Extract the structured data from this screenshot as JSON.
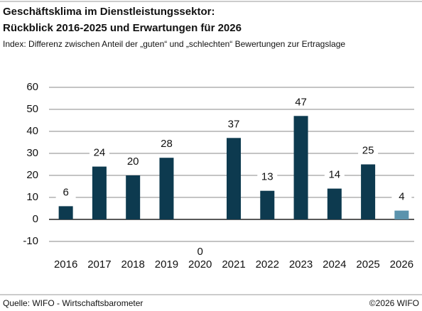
{
  "chart_data": {
    "type": "bar",
    "title": "Geschäftsklima im Dienstleistungssektor:",
    "title_line2": "Rückblick 2016-2025 und Erwartungen für 2026",
    "subtitle": "Index: Differenz zwischen Anteil der „guten“ und „schlechten“ Bewertungen zur Ertragslage",
    "categories": [
      "2016",
      "2017",
      "2018",
      "2019",
      "2020",
      "2021",
      "2022",
      "2023",
      "2024",
      "2025",
      "2026"
    ],
    "values": [
      6,
      24,
      20,
      28,
      0,
      37,
      13,
      47,
      14,
      25,
      4
    ],
    "colors": [
      "#0d3a4f",
      "#0d3a4f",
      "#0d3a4f",
      "#0d3a4f",
      "#0d3a4f",
      "#0d3a4f",
      "#0d3a4f",
      "#0d3a4f",
      "#0d3a4f",
      "#0d3a4f",
      "#5b93ad"
    ],
    "ylim": [
      -10,
      60
    ],
    "yticks": [
      -10,
      0,
      10,
      20,
      30,
      40,
      50,
      60
    ],
    "grid": true,
    "source": "Quelle: WIFO - Wirtschaftsbarometer",
    "copyright": "©2026 WIFO"
  }
}
